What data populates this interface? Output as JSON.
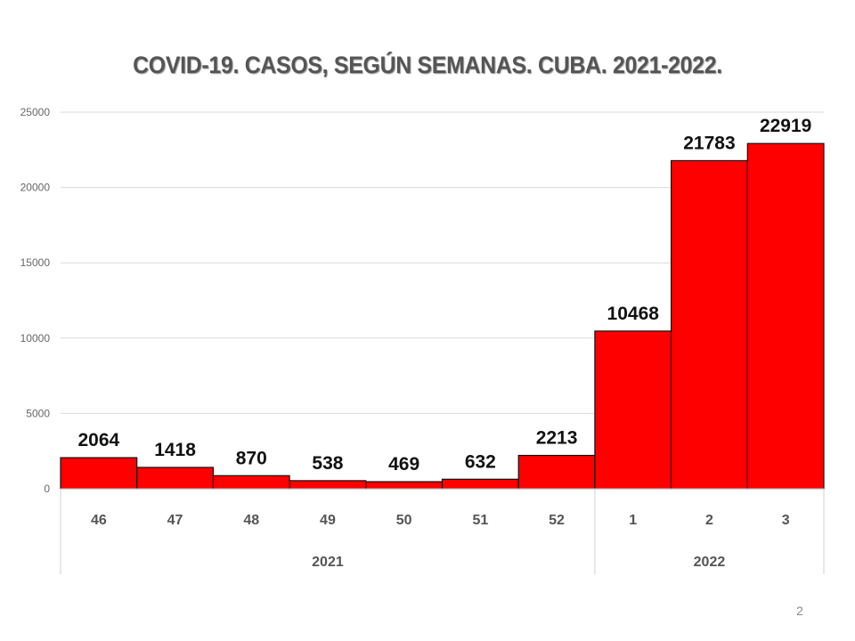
{
  "chart_data": {
    "type": "bar",
    "title": "COVID-19. CASOS, SEGÚN SEMANAS. CUBA. 2021-2022.",
    "categories": [
      "46",
      "47",
      "48",
      "49",
      "50",
      "51",
      "52",
      "1",
      "2",
      "3"
    ],
    "groups": [
      {
        "label": "2021",
        "categories": [
          "46",
          "47",
          "48",
          "49",
          "50",
          "51",
          "52"
        ]
      },
      {
        "label": "2022",
        "categories": [
          "1",
          "2",
          "3"
        ]
      }
    ],
    "values": [
      2064,
      1418,
      870,
      538,
      469,
      632,
      2213,
      10468,
      21783,
      22919
    ],
    "ylim": [
      0,
      25000
    ],
    "yticks": [
      0,
      5000,
      10000,
      15000,
      20000,
      25000
    ],
    "grid": true,
    "legend": "none",
    "bar_color": "#ff0000",
    "bar_edge_color": "#111111",
    "data_labels": true
  },
  "slide": {
    "page_number": "2"
  }
}
